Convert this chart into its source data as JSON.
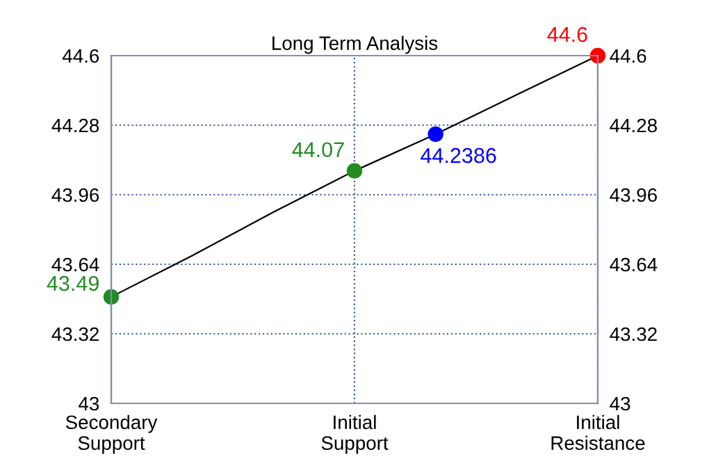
{
  "chart_data": {
    "type": "line",
    "title": "Long Term Analysis",
    "categories": [
      "Secondary\nSupport",
      null,
      null,
      "Initial\nSupport",
      null,
      null,
      "Initial\nResistance"
    ],
    "ylim": [
      43,
      44.6
    ],
    "yticks": [
      43,
      43.32,
      43.64,
      43.96,
      44.28,
      44.6
    ],
    "y2lim": [
      43,
      44.6
    ],
    "y2ticks": [
      43,
      43.32,
      43.64,
      43.96,
      44.28,
      44.6
    ],
    "grid": true,
    "series": [
      {
        "color": "#000000",
        "values": [
          43.49,
          43.68,
          43.88,
          44.07,
          44.2386,
          44.42,
          44.6
        ],
        "colors": [
          "#228b22",
          null,
          null,
          "#228b22",
          "#0000ff",
          null,
          "#ff0000"
        ],
        "marker": "circle",
        "value_labels": [
          "43.49",
          null,
          null,
          "44.07",
          "44.2386",
          null,
          "44.6"
        ]
      }
    ]
  }
}
